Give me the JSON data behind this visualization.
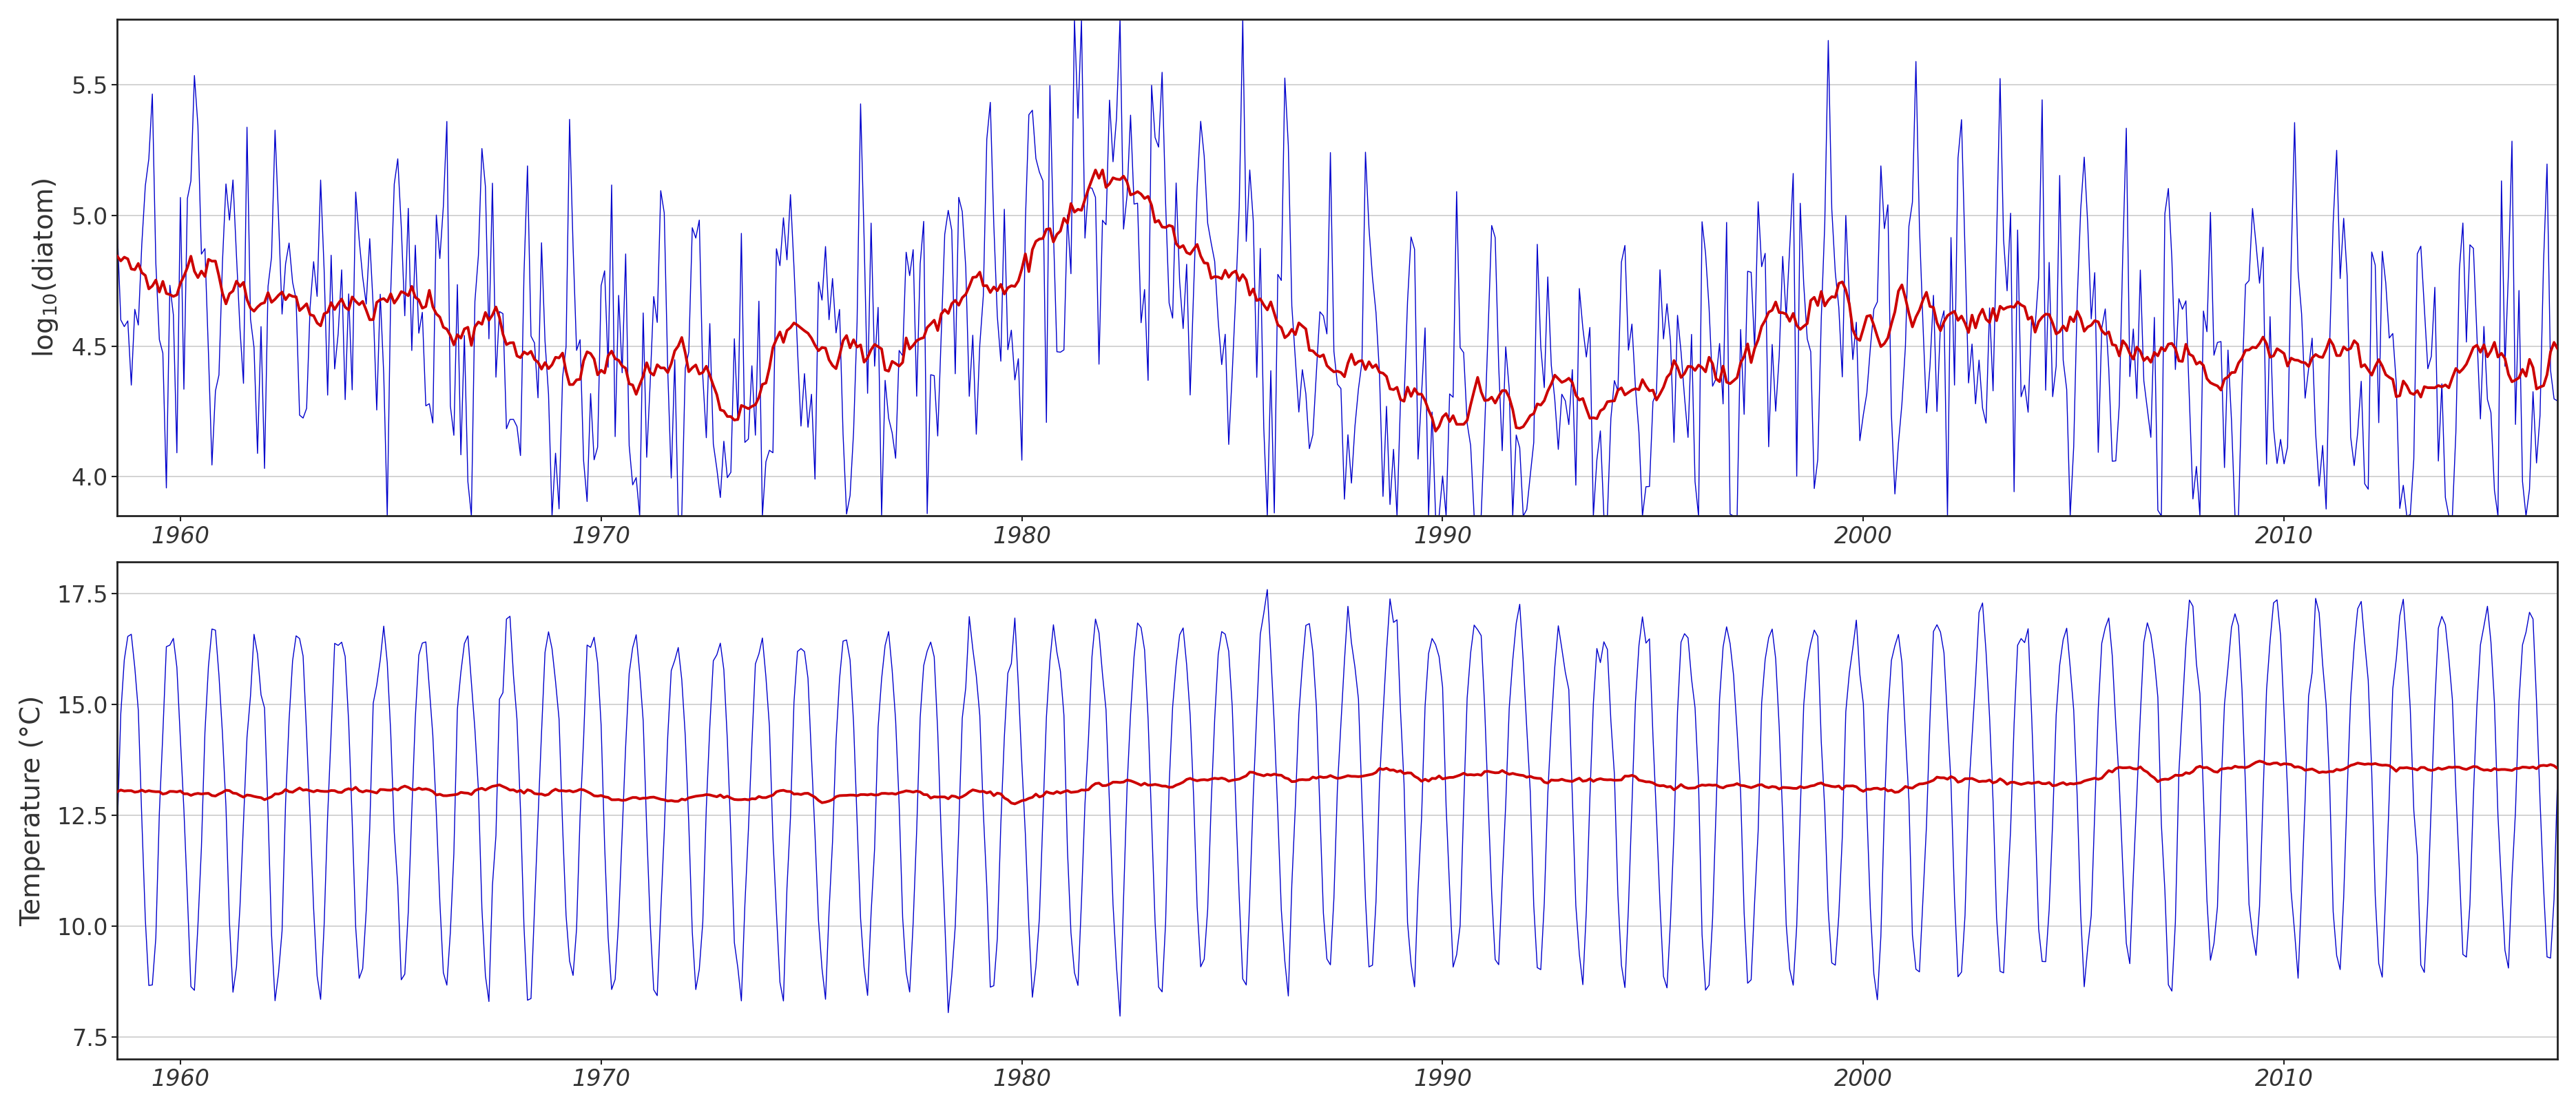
{
  "year_start": 1958.0,
  "year_step": 0.08333333333,
  "n_points": 720,
  "diatom_ylim": [
    3.85,
    5.75
  ],
  "diatom_yticks": [
    4.0,
    4.5,
    5.0,
    5.5
  ],
  "temp_ylim": [
    7.0,
    18.2
  ],
  "temp_yticks": [
    7.5,
    10.0,
    12.5,
    15.0,
    17.5
  ],
  "xticks": [
    1960,
    1970,
    1980,
    1990,
    2000,
    2010
  ],
  "xlim": [
    1958.5,
    2016.5
  ],
  "ylabel_diatom": "$\\mathregular{log_{10}(diatom)}$",
  "ylabel_temp": "Temperature (°C)",
  "blue_color": "#0000CC",
  "red_color": "#CC0000",
  "bg_color": "#FFFFFF",
  "plot_bg_color": "#FFFFFF",
  "grid_color": "#CCCCCC",
  "blue_lw": 1.0,
  "red_lw": 2.8,
  "font_size": 28,
  "tick_font_size": 24,
  "spine_color": "#222222",
  "spine_lw": 2.0
}
